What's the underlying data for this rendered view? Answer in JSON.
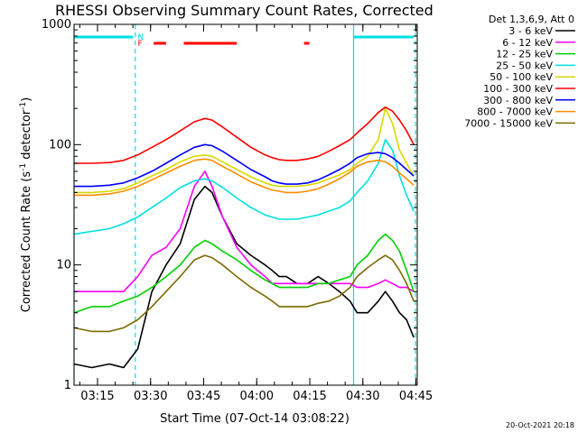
{
  "chart_data": {
    "type": "line",
    "title": "RHESSI Observing Summary Count Rates, Corrected",
    "xlabel": "Start Time (07-Oct-14 03:08:22)",
    "ylabel_main": "Corrected Count Rate (s",
    "ylabel_sup1": "-1",
    "ylabel_mid": " detector",
    "ylabel_sup2": "-1",
    "ylabel_end": ")",
    "y_scale": "log",
    "ylim": [
      1,
      1000
    ],
    "xlim_minutes": [
      0,
      97
    ],
    "x_tick_minutes": [
      6.63,
      21.63,
      36.63,
      51.63,
      66.63,
      81.63,
      96.63
    ],
    "x_tick_labels": [
      "03:15",
      "03:30",
      "03:45",
      "04:00",
      "04:15",
      "04:30",
      "04:45"
    ],
    "y_ticks": [
      1,
      10,
      100,
      1000
    ],
    "y_tick_labels": [
      "1",
      "10",
      "100",
      "1000"
    ],
    "legend_header": "Det 1,3,6,9, Att 0",
    "legend_placement": "outside-right",
    "series": [
      {
        "name": "3 - 6 keV",
        "color": "#000000",
        "x": [
          0,
          5,
          10,
          14,
          18,
          22,
          26,
          30,
          34,
          37,
          39,
          42,
          46,
          50,
          54,
          56,
          58,
          60,
          63,
          66,
          69,
          72,
          75,
          78,
          80,
          83,
          86,
          88,
          90,
          92,
          94,
          96
        ],
        "y": [
          1.5,
          1.4,
          1.5,
          1.4,
          2,
          6,
          10,
          15,
          35,
          45,
          40,
          25,
          15,
          12,
          10,
          9,
          8,
          8,
          7,
          7,
          8,
          7,
          6,
          5,
          4,
          4,
          5,
          6,
          5,
          4,
          3.5,
          2.5
        ]
      },
      {
        "name": "6 - 12 keV",
        "color": "#ff00ff",
        "x": [
          0,
          5,
          10,
          14,
          18,
          22,
          26,
          30,
          34,
          37,
          39,
          42,
          46,
          50,
          54,
          56,
          58,
          60,
          63,
          66,
          69,
          72,
          75,
          78,
          80,
          83,
          86,
          88,
          90,
          92,
          94,
          96
        ],
        "y": [
          6,
          6,
          6,
          6,
          8,
          12,
          14,
          20,
          45,
          60,
          45,
          25,
          14,
          10,
          8,
          7,
          7,
          7,
          7,
          7,
          7,
          7,
          7,
          7,
          6.5,
          6.5,
          7,
          7.5,
          7,
          6.5,
          6.5,
          6
        ]
      },
      {
        "name": "12 - 25 keV",
        "color": "#00d000",
        "x": [
          0,
          5,
          10,
          14,
          18,
          22,
          26,
          30,
          34,
          37,
          39,
          42,
          46,
          50,
          54,
          56,
          58,
          60,
          63,
          66,
          69,
          72,
          75,
          78,
          80,
          83,
          86,
          88,
          90,
          92,
          94,
          96
        ],
        "y": [
          4,
          4.5,
          4.5,
          5,
          5.5,
          6.5,
          8,
          10,
          14,
          16,
          15,
          13,
          11,
          9,
          7.5,
          7,
          6.5,
          6.5,
          6.5,
          6.5,
          7,
          7,
          7.5,
          8,
          10,
          12,
          16,
          18,
          16,
          13,
          9,
          6
        ]
      },
      {
        "name": "25 - 50 keV",
        "color": "#00e0e0",
        "x": [
          0,
          5,
          10,
          14,
          18,
          22,
          26,
          30,
          34,
          37,
          39,
          42,
          46,
          50,
          54,
          56,
          58,
          60,
          63,
          66,
          69,
          72,
          75,
          78,
          80,
          83,
          86,
          88,
          90,
          92,
          94,
          96
        ],
        "y": [
          18,
          19,
          20,
          22,
          25,
          30,
          36,
          44,
          50,
          52,
          50,
          44,
          36,
          30,
          26,
          25,
          24,
          24,
          24,
          25,
          26,
          28,
          30,
          34,
          40,
          50,
          70,
          110,
          90,
          55,
          38,
          28
        ]
      },
      {
        "name": "50 - 100 keV",
        "color": "#d8d800",
        "x": [
          0,
          5,
          10,
          14,
          18,
          22,
          26,
          30,
          34,
          37,
          39,
          42,
          46,
          50,
          54,
          56,
          58,
          60,
          63,
          66,
          69,
          72,
          75,
          78,
          80,
          83,
          86,
          88,
          90,
          92,
          94,
          96
        ],
        "y": [
          40,
          40,
          41,
          43,
          48,
          55,
          62,
          72,
          80,
          82,
          80,
          72,
          62,
          54,
          48,
          46,
          45,
          45,
          45,
          46,
          48,
          52,
          56,
          62,
          70,
          80,
          110,
          200,
          150,
          90,
          70,
          55
        ]
      },
      {
        "name": "100 - 300 keV",
        "color": "#ff0000",
        "x": [
          0,
          5,
          10,
          14,
          18,
          22,
          26,
          30,
          34,
          37,
          39,
          42,
          46,
          50,
          54,
          56,
          58,
          60,
          63,
          66,
          69,
          72,
          75,
          78,
          80,
          83,
          86,
          88,
          90,
          92,
          94,
          96
        ],
        "y": [
          70,
          70,
          71,
          74,
          82,
          95,
          110,
          130,
          155,
          165,
          160,
          140,
          115,
          95,
          82,
          78,
          75,
          74,
          74,
          76,
          80,
          88,
          98,
          110,
          125,
          150,
          185,
          205,
          190,
          160,
          130,
          100
        ]
      },
      {
        "name": "300 - 800 keV",
        "color": "#0000ff",
        "x": [
          0,
          5,
          10,
          14,
          18,
          22,
          26,
          30,
          34,
          37,
          39,
          42,
          46,
          50,
          54,
          56,
          58,
          60,
          63,
          66,
          69,
          72,
          75,
          78,
          80,
          83,
          86,
          88,
          90,
          92,
          94,
          96
        ],
        "y": [
          45,
          45,
          46,
          48,
          53,
          60,
          70,
          82,
          95,
          100,
          98,
          88,
          74,
          62,
          54,
          50,
          48,
          47,
          47,
          48,
          51,
          56,
          62,
          70,
          78,
          84,
          86,
          84,
          78,
          70,
          62,
          55
        ]
      },
      {
        "name": "800 - 7000 keV",
        "color": "#ff8c00",
        "x": [
          0,
          5,
          10,
          14,
          18,
          22,
          26,
          30,
          34,
          37,
          39,
          42,
          46,
          50,
          54,
          56,
          58,
          60,
          63,
          66,
          69,
          72,
          75,
          78,
          80,
          83,
          86,
          88,
          90,
          92,
          94,
          96
        ],
        "y": [
          38,
          38,
          39,
          41,
          45,
          51,
          58,
          66,
          74,
          76,
          74,
          66,
          57,
          49,
          44,
          42,
          41,
          40,
          40,
          41,
          43,
          47,
          52,
          59,
          66,
          72,
          74,
          72,
          66,
          58,
          52,
          46
        ]
      },
      {
        "name": "7000 - 15000 keV",
        "color": "#7a6a00",
        "x": [
          0,
          5,
          10,
          14,
          18,
          22,
          26,
          30,
          34,
          37,
          39,
          42,
          46,
          50,
          54,
          56,
          58,
          60,
          63,
          66,
          69,
          72,
          75,
          78,
          80,
          83,
          86,
          88,
          90,
          92,
          94,
          96
        ],
        "y": [
          3,
          2.8,
          2.8,
          3,
          3.5,
          4.5,
          6,
          8,
          11,
          12,
          11.5,
          10,
          8,
          6.5,
          5.5,
          5,
          4.5,
          4.5,
          4.5,
          4.5,
          4.8,
          5,
          5.5,
          6.5,
          8,
          9.5,
          11,
          12,
          11,
          9,
          7,
          5
        ]
      }
    ],
    "top_flags": {
      "n_label": "N",
      "f_label": "F",
      "n_segments": [
        [
          0,
          16.7
        ],
        [
          79,
          96
        ]
      ],
      "f_segments": [
        [
          22.5,
          26
        ],
        [
          31,
          46
        ],
        [
          65,
          66.5
        ]
      ],
      "n_color": "#00e0e0",
      "f_color": "#ff0000"
    },
    "vlines": [
      {
        "minute": 0,
        "color": "#00e0e0",
        "style": "solid"
      },
      {
        "minute": 17.3,
        "color": "#00e0e0",
        "style": "dashed"
      },
      {
        "minute": 79,
        "color": "#00e0e0",
        "style": "solid"
      },
      {
        "minute": 96.5,
        "color": "#00e0e0",
        "style": "dashed"
      }
    ]
  },
  "footer": {
    "timestamp": "20-Oct-2021 20:18"
  }
}
